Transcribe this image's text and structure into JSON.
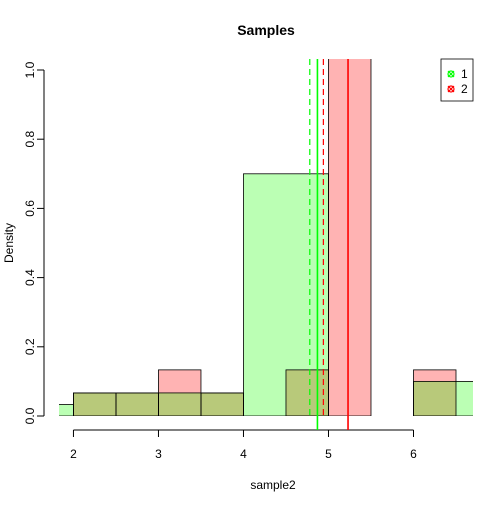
{
  "chart_data": {
    "type": "histogram",
    "title": "Samples",
    "xlabel": "sample2",
    "ylabel": "Density",
    "xlim": [
      1.83,
      6.7
    ],
    "ylim": [
      0,
      1.0
    ],
    "x_ticks": [
      "2",
      "3",
      "4",
      "5",
      "6"
    ],
    "y_ticks": [
      "0.0",
      "0.2",
      "0.4",
      "0.6",
      "0.8",
      "1.0"
    ],
    "legend": {
      "position": "top-right",
      "entries": [
        {
          "label": "1",
          "color": "#00FF00"
        },
        {
          "label": "2",
          "color": "#FF0000"
        }
      ]
    },
    "overlap_color": "#B8C97A",
    "series": [
      {
        "name": "1",
        "fill": "#BBFFB4",
        "line_color": "#00FF00",
        "bins": [
          {
            "x0": 1.5,
            "x1": 2.0,
            "density": 0.0333
          },
          {
            "x0": 2.0,
            "x1": 2.5,
            "density": 0.0667
          },
          {
            "x0": 2.5,
            "x1": 3.0,
            "density": 0.0667
          },
          {
            "x0": 3.0,
            "x1": 3.5,
            "density": 0.0667
          },
          {
            "x0": 3.5,
            "x1": 4.0,
            "density": 0.0667
          },
          {
            "x0": 4.0,
            "x1": 5.0,
            "density": 0.7
          },
          {
            "x0": 5.0,
            "x1": 6.0,
            "density": 0.0
          },
          {
            "x0": 6.0,
            "x1": 7.0,
            "density": 0.1
          }
        ],
        "mean": 4.87,
        "median": 4.78
      },
      {
        "name": "2",
        "fill": "#FFB3B3",
        "line_color": "#FF0000",
        "bins": [
          {
            "x0": 2.0,
            "x1": 2.5,
            "density": 0.0667
          },
          {
            "x0": 2.5,
            "x1": 3.0,
            "density": 0.0667
          },
          {
            "x0": 3.0,
            "x1": 3.5,
            "density": 0.1333
          },
          {
            "x0": 3.5,
            "x1": 4.0,
            "density": 0.0667
          },
          {
            "x0": 4.5,
            "x1": 5.0,
            "density": 0.1333
          },
          {
            "x0": 5.0,
            "x1": 5.5,
            "density": 1.2
          },
          {
            "x0": 5.5,
            "x1": 6.0,
            "density": 0.0
          },
          {
            "x0": 6.0,
            "x1": 6.5,
            "density": 0.1333
          }
        ],
        "mean": 5.23,
        "median": 4.94
      }
    ]
  }
}
